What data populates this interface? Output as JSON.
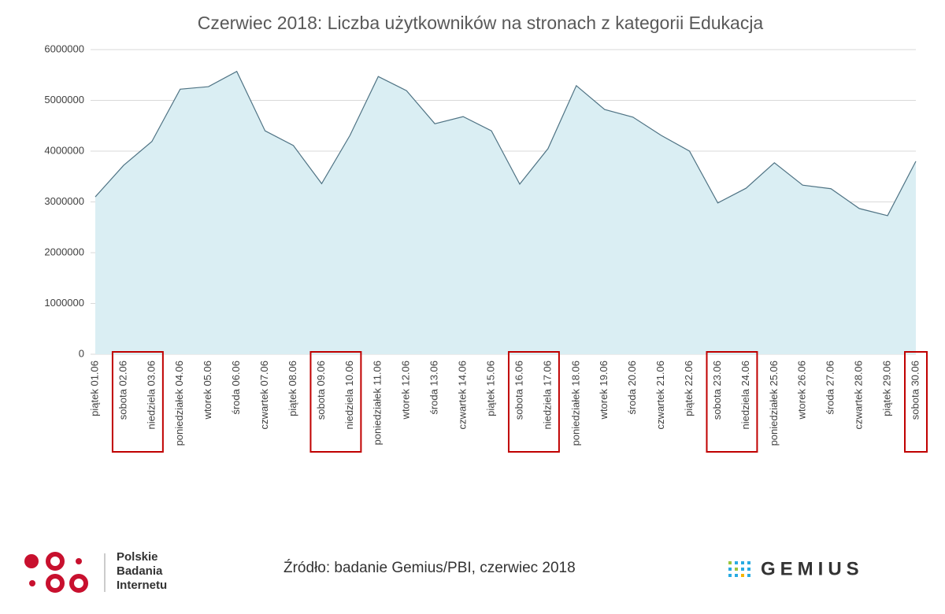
{
  "chart_data": {
    "type": "area",
    "title": "Czerwiec 2018: Liczba użytkowników na stronach z kategorii Edukacja",
    "categories": [
      "piątek 01.06",
      "sobota 02.06",
      "niedziela 03.06",
      "poniedziałek 04.06",
      "wtorek 05.06",
      "środa 06.06",
      "czwartek 07.06",
      "piątek 08.06",
      "sobota 09.06",
      "niedziela 10.06",
      "poniedziałek 11.06",
      "wtorek 12.06",
      "środa 13.06",
      "czwartek 14.06",
      "piątek 15.06",
      "sobota 16.06",
      "niedziela 17.06",
      "poniedziałek 18.06",
      "wtorek 19.06",
      "środa 20.06",
      "czwartek 21.06",
      "piątek 22.06",
      "sobota 23.06",
      "niedziela 24.06",
      "poniedziałek 25.06",
      "wtorek 26.06",
      "środa 27.06",
      "czwartek 28.06",
      "piątek 29.06",
      "sobota 30.06"
    ],
    "values": [
      3100000,
      3720000,
      4190000,
      5220000,
      5270000,
      5570000,
      4400000,
      4110000,
      3360000,
      4310000,
      5470000,
      5190000,
      4540000,
      4680000,
      4400000,
      3350000,
      4050000,
      5290000,
      4820000,
      4670000,
      4310000,
      4000000,
      2980000,
      3270000,
      3770000,
      3330000,
      3260000,
      2870000,
      2730000,
      3800000
    ],
    "color": "#daeef3",
    "line_color": "#4f7384",
    "ylim": [
      0,
      6000000
    ],
    "yticks": [
      0,
      1000000,
      2000000,
      3000000,
      4000000,
      5000000,
      6000000
    ],
    "grid": true
  },
  "footer": {
    "source": "Źródło: badanie Gemius/PBI, czerwiec 2018",
    "pbi": [
      "Polskie",
      "Badania",
      "Internetu"
    ],
    "gemius": "GEMIUS"
  }
}
